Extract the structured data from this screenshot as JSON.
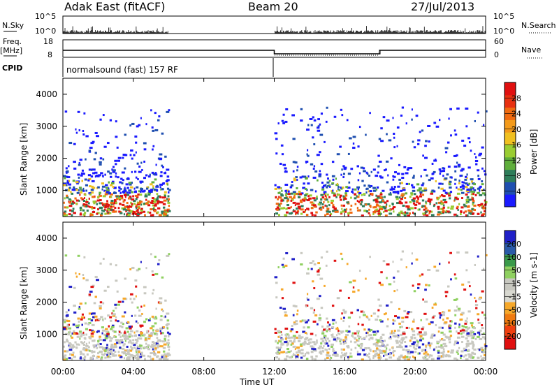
{
  "header": {
    "station": "Adak East (fitACF)",
    "beam": "Beam 20",
    "date": "27/Jul/2013"
  },
  "top_panels": {
    "nsky_label": "N.Sky",
    "nsky_ticks": [
      "10^5",
      "10^0"
    ],
    "nsearch_label": "N.Search",
    "nsearch_ticks": [
      "10^5",
      "10^0"
    ],
    "freq_label_1": "Freq.",
    "freq_label_2": "[MHz]",
    "freq_ticks": [
      "18",
      "8"
    ],
    "nave_label": "Nave",
    "nave_ticks": [
      "60",
      "0"
    ],
    "cpid_label": "CPID",
    "cpid_text": "normalsound (fast) 157 RF"
  },
  "colors": {
    "power_scale": [
      "#1a1aff",
      "#1f4fb0",
      "#2e7d5a",
      "#5fae3c",
      "#9acd32",
      "#f0c020",
      "#f39a1a",
      "#f06a10",
      "#e83010",
      "#e01010"
    ],
    "velocity_scale": [
      "#e01010",
      "#f04010",
      "#f07a10",
      "#f6a82a",
      "#d8d8d0",
      "#c8c8c0",
      "#8fd060",
      "#3a9a4a",
      "#2a5aa8",
      "#2020c8"
    ]
  },
  "chart_data": [
    {
      "type": "line",
      "title": "Adak East (fitACF) Beam 20 27/Jul/2013",
      "series": [
        {
          "name": "N.Sky",
          "x": [
            "00:00",
            "06:00",
            "12:00",
            "24:00"
          ],
          "y": [
            1,
            1,
            1,
            1
          ]
        },
        {
          "name": "Freq.",
          "x": [
            "00:00",
            "06:00",
            "12:00",
            "18:00",
            "24:00"
          ],
          "y": [
            12,
            12,
            10,
            12,
            12
          ]
        },
        {
          "name": "Nave",
          "x": [
            "00:00",
            "06:00",
            "12:00",
            "18:00",
            "24:00"
          ],
          "y": [
            24,
            24,
            12,
            24,
            24
          ]
        }
      ]
    },
    {
      "type": "heatmap",
      "xlabel": "Time UT",
      "ylabel": "Slant Range [km]",
      "x_ticks": [
        "00:00",
        "04:00",
        "08:00",
        "12:00",
        "16:00",
        "20:00",
        "00:00"
      ],
      "y_ticks": [
        "1000",
        "2000",
        "3000",
        "4000"
      ],
      "colorbar_label": "Power [dB]",
      "colorbar_ticks": [
        "28",
        "24",
        "20",
        "16",
        "12",
        "8",
        "4"
      ],
      "xlim": [
        "00:00",
        "24:00"
      ],
      "ylim": [
        180,
        4500
      ],
      "data_gap": [
        "06:00",
        "12:00"
      ]
    },
    {
      "type": "heatmap",
      "xlabel": "Time UT",
      "ylabel": "Slant Range [km]",
      "x_ticks": [
        "00:00",
        "04:00",
        "08:00",
        "12:00",
        "16:00",
        "20:00",
        "00:00"
      ],
      "y_ticks": [
        "1000",
        "2000",
        "3000",
        "4000"
      ],
      "colorbar_label": "Velocity [m s-1]",
      "colorbar_ticks": [
        "200",
        "100",
        "50",
        "15",
        "-15",
        "-50",
        "-100",
        "-200"
      ],
      "xlim": [
        "00:00",
        "24:00"
      ],
      "ylim": [
        180,
        4500
      ],
      "data_gap": [
        "06:00",
        "12:00"
      ]
    }
  ]
}
